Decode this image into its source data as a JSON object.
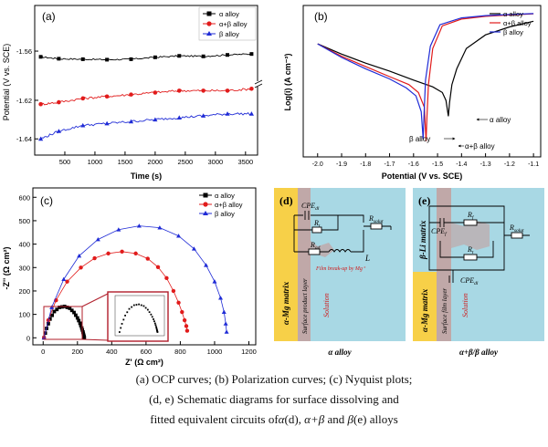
{
  "colors": {
    "alpha": "#000000",
    "alpha_beta": "#e11b1b",
    "beta": "#1f2bd6",
    "schematic_solution": "#a8d8e4",
    "schematic_matrix": "#f7d048",
    "schematic_film": "#c0a8a8"
  },
  "chart_data": [
    {
      "id": "a",
      "type": "line",
      "panel_label": "(a)",
      "xlabel": "Time (s)",
      "ylabel": "Potential (V vs. SCE)",
      "xlim": [
        0,
        3700
      ],
      "xticks": [
        500,
        1000,
        1500,
        2000,
        2500,
        3000,
        3500
      ],
      "ylim_upper": [
        -1.5669,
        -1.5504
      ],
      "yticks_upper": [
        "-1.56"
      ],
      "yticks_upper_values": [
        -1.56
      ],
      "ylim_lower": [
        -1.6484,
        -1.6115
      ],
      "yticks_lower": [
        "-1.62",
        "-1.64"
      ],
      "yticks_lower_values": [
        -1.62,
        -1.64
      ],
      "axis_break": true,
      "legend_position": "top-right",
      "series": [
        {
          "name": "α alloy",
          "key": "alpha",
          "marker": "square",
          "x": [
            100,
            400,
            800,
            1200,
            1600,
            2000,
            2400,
            2800,
            3200,
            3600
          ],
          "y": [
            -1.5612,
            -1.5616,
            -1.5617,
            -1.5618,
            -1.5617,
            -1.5613,
            -1.561,
            -1.5611,
            -1.5608,
            -1.5606
          ]
        },
        {
          "name": "α+β alloy",
          "key": "alpha_beta",
          "marker": "circle",
          "x": [
            100,
            400,
            800,
            1200,
            1600,
            2000,
            2400,
            2800,
            3200,
            3600
          ],
          "y": [
            -1.622,
            -1.621,
            -1.619,
            -1.618,
            -1.617,
            -1.616,
            -1.615,
            -1.615,
            -1.615,
            -1.614
          ]
        },
        {
          "name": "β alloy",
          "key": "beta",
          "marker": "triangle",
          "x": [
            100,
            400,
            800,
            1200,
            1600,
            2000,
            2400,
            2800,
            3200,
            3600
          ],
          "y": [
            -1.64,
            -1.636,
            -1.633,
            -1.632,
            -1.631,
            -1.63,
            -1.629,
            -1.628,
            -1.627,
            -1.627
          ]
        }
      ]
    },
    {
      "id": "b",
      "type": "line",
      "panel_label": "(b)",
      "xlabel": "Potential (V vs. SCE)",
      "ylabel": "Log(i) (A cm⁻²)",
      "xlim": [
        -2.06,
        -1.07
      ],
      "xticks": [
        "-2.0",
        "-1.9",
        "-1.8",
        "-1.7",
        "-1.6",
        "-1.5",
        "-1.4",
        "-1.3",
        "-1.2",
        "-1.1"
      ],
      "xtick_values": [
        -2.0,
        -1.9,
        -1.8,
        -1.7,
        -1.6,
        -1.5,
        -1.4,
        -1.3,
        -1.2,
        -1.1
      ],
      "ylim": [
        -7,
        -0.3
      ],
      "legend_position": "top-right",
      "annotations": [
        {
          "text": "α alloy",
          "series": "alpha"
        },
        {
          "text": "β alloy",
          "series": "beta"
        },
        {
          "text": "α+β alloy",
          "series": "alpha_beta"
        }
      ],
      "series": [
        {
          "name": "α alloy",
          "key": "alpha",
          "x": [
            -2.0,
            -1.9,
            -1.8,
            -1.7,
            -1.6,
            -1.52,
            -1.48,
            -1.465,
            -1.455,
            -1.45,
            -1.44,
            -1.42,
            -1.38,
            -1.3,
            -1.2,
            -1.1
          ],
          "y": [
            -2.0,
            -2.45,
            -2.85,
            -3.2,
            -3.6,
            -3.9,
            -4.15,
            -4.5,
            -5.2,
            -4.6,
            -3.8,
            -3.1,
            -2.2,
            -1.6,
            -1.25,
            -1.0
          ]
        },
        {
          "name": "α+β alloy",
          "key": "alpha_beta",
          "x": [
            -2.0,
            -1.9,
            -1.8,
            -1.7,
            -1.62,
            -1.58,
            -1.555,
            -1.548,
            -1.544,
            -1.538,
            -1.52,
            -1.48,
            -1.4,
            -1.3,
            -1.2,
            -1.1
          ],
          "y": [
            -2.0,
            -2.55,
            -3.0,
            -3.45,
            -3.8,
            -4.15,
            -4.8,
            -6.3,
            -5.2,
            -3.8,
            -2.2,
            -1.2,
            -0.9,
            -0.78,
            -0.72,
            -0.67
          ]
        },
        {
          "name": "β alloy",
          "key": "beta",
          "x": [
            -2.0,
            -1.9,
            -1.8,
            -1.7,
            -1.63,
            -1.59,
            -1.568,
            -1.56,
            -1.556,
            -1.55,
            -1.53,
            -1.49,
            -1.4,
            -1.3,
            -1.2,
            -1.1
          ],
          "y": [
            -2.0,
            -2.6,
            -3.1,
            -3.55,
            -3.95,
            -4.3,
            -5.0,
            -6.2,
            -5.0,
            -3.6,
            -2.1,
            -1.15,
            -0.85,
            -0.75,
            -0.7,
            -0.66
          ]
        }
      ]
    },
    {
      "id": "c",
      "type": "scatter",
      "panel_label": "(c)",
      "xlabel": "Z' (Ω cm²)",
      "ylabel": "-Z'' (Ω cm²)",
      "xlim": [
        -60,
        1240
      ],
      "xticks": [
        0,
        200,
        400,
        600,
        800,
        1000,
        1200
      ],
      "ylim": [
        -30,
        640
      ],
      "yticks": [
        0,
        100,
        200,
        300,
        400,
        500,
        600
      ],
      "legend_position": "top-right",
      "inset": "magnified view of α alloy low-frequency region",
      "series": [
        {
          "name": "α alloy",
          "key": "alpha",
          "marker": "square",
          "x": [
            5,
            20,
            40,
            65,
            95,
            125,
            155,
            180,
            200,
            215,
            225,
            232,
            236,
            238,
            240
          ],
          "y": [
            0,
            40,
            80,
            112,
            130,
            134,
            126,
            108,
            85,
            62,
            42,
            25,
            12,
            5,
            0
          ]
        },
        {
          "name": "α+β alloy",
          "key": "alpha_beta",
          "marker": "circle",
          "x": [
            5,
            30,
            75,
            140,
            220,
            300,
            380,
            460,
            540,
            610,
            670,
            720,
            760,
            790,
            810,
            825,
            835,
            840
          ],
          "y": [
            0,
            75,
            160,
            240,
            300,
            340,
            360,
            368,
            360,
            338,
            302,
            255,
            200,
            150,
            110,
            75,
            50,
            30
          ]
        },
        {
          "name": "β alloy",
          "key": "beta",
          "marker": "triangle",
          "x": [
            5,
            50,
            120,
            210,
            320,
            440,
            560,
            680,
            790,
            880,
            950,
            1000,
            1035,
            1055,
            1065,
            1070
          ],
          "y": [
            0,
            130,
            250,
            350,
            420,
            462,
            478,
            470,
            435,
            380,
            310,
            240,
            170,
            110,
            60,
            25
          ]
        }
      ]
    }
  ],
  "schematics": {
    "d": {
      "panel_label": "(d)",
      "caption": "α alloy",
      "matrix_label": "α-Mg matrix",
      "film_label": "Surface product layer",
      "solution_label": "Solution",
      "components": {
        "cpe": "CPE",
        "cpe_sub": "dl",
        "rt": "R",
        "rt_sub": "t",
        "rsolut": "R",
        "rsolut_sub": "solut",
        "rad": "R",
        "rad_sub": "ad",
        "l": "L"
      },
      "note": "Film break-up by Mg⁺"
    },
    "e": {
      "panel_label": "(e)",
      "caption": "α+β/β alloy",
      "beta_label": "β-Li matrix",
      "matrix_label": "α-Mg matrix",
      "film_label": "Surface film layer",
      "solution_label": "Solution",
      "components": {
        "cpef": "CPE",
        "cpef_sub": "f",
        "rf": "R",
        "rf_sub": "f",
        "rt": "R",
        "rt_sub": "t",
        "rsolut": "R",
        "rsolut_sub": "solut",
        "cpedl": "CPE",
        "cpedl_sub": "dl"
      }
    }
  },
  "caption": {
    "line1": "(a) OCP curves; (b) Polarization curves; (c) Nyquist plots;",
    "line2": "(d, e) Schematic diagrams for surface dissolving and",
    "line3_prefix": "fitted equivalent circuits of",
    "line3_a": "α",
    "line3_mid1": "(d), ",
    "line3_b": "α+β",
    "line3_mid2": " and ",
    "line3_c": "β",
    "line3_suffix": "(e) alloys"
  }
}
